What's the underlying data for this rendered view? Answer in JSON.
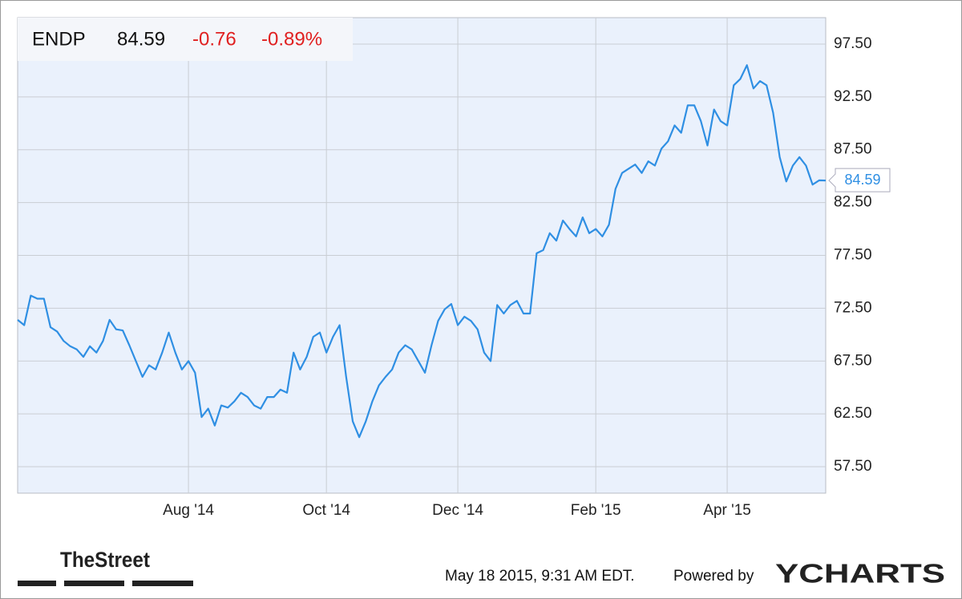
{
  "chart_data": {
    "type": "line",
    "ticker": "ENDP",
    "price": "84.59",
    "change": "-0.76",
    "change_percent": "-0.89%",
    "categories": [
      null,
      null,
      null,
      null,
      null,
      null,
      null,
      null,
      null,
      null,
      null,
      null,
      null,
      null,
      null,
      null,
      null,
      null,
      null,
      null,
      null,
      null,
      null,
      null,
      null,
      null,
      "Aug '14",
      null,
      null,
      null,
      null,
      null,
      null,
      null,
      null,
      null,
      null,
      null,
      null,
      null,
      null,
      null,
      null,
      null,
      null,
      null,
      null,
      "Oct '14",
      null,
      null,
      null,
      null,
      null,
      null,
      null,
      null,
      null,
      null,
      null,
      null,
      null,
      null,
      null,
      null,
      null,
      null,
      null,
      "Dec '14",
      null,
      null,
      null,
      null,
      null,
      null,
      null,
      null,
      null,
      null,
      null,
      null,
      null,
      null,
      null,
      null,
      null,
      null,
      null,
      null,
      "Feb '15",
      null,
      null,
      null,
      null,
      null,
      null,
      null,
      null,
      null,
      null,
      null,
      null,
      null,
      null,
      null,
      null,
      null,
      null,
      null,
      "Apr '15",
      null,
      null,
      null,
      null,
      null,
      null,
      null,
      null,
      null,
      null,
      null,
      null,
      null,
      null,
      null
    ],
    "series": [
      {
        "name": "ENDP",
        "color": "#2f8fe3",
        "values": [
          71.4,
          70.9,
          73.7,
          73.4,
          73.4,
          70.7,
          70.3,
          69.4,
          68.9,
          68.6,
          67.9,
          68.9,
          68.3,
          69.4,
          71.4,
          70.5,
          70.4,
          69.0,
          67.5,
          66.0,
          67.1,
          66.7,
          68.3,
          70.2,
          68.3,
          66.7,
          67.5,
          66.4,
          62.2,
          63.0,
          61.4,
          63.3,
          63.1,
          63.7,
          64.5,
          64.1,
          63.3,
          63.0,
          64.1,
          64.1,
          64.8,
          64.5,
          68.3,
          66.7,
          67.9,
          69.8,
          70.2,
          68.3,
          69.8,
          70.9,
          66.0,
          61.8,
          60.3,
          61.8,
          63.7,
          65.2,
          66.0,
          66.7,
          68.3,
          69.0,
          68.6,
          67.5,
          66.4,
          69.0,
          71.3,
          72.4,
          72.9,
          70.9,
          71.7,
          71.3,
          70.5,
          68.3,
          67.5,
          72.8,
          72.0,
          72.8,
          73.2,
          72.0,
          72.0,
          77.7,
          78.0,
          79.6,
          78.9,
          80.8,
          80.0,
          79.3,
          81.1,
          79.6,
          80.0,
          79.3,
          80.4,
          83.8,
          85.3,
          85.7,
          86.1,
          85.3,
          86.4,
          86.0,
          87.6,
          88.3,
          89.8,
          89.1,
          91.7,
          91.7,
          90.2,
          87.9,
          91.3,
          90.2,
          89.8,
          93.6,
          94.2,
          95.5,
          93.3,
          94.0,
          93.6,
          91.0,
          86.8,
          84.5,
          86.0,
          86.8,
          86.0,
          84.2,
          84.6,
          84.59
        ]
      }
    ],
    "ylim": [
      55,
      100
    ],
    "yticks": [
      {
        "value": 57.5,
        "label": "57.50"
      },
      {
        "value": 62.5,
        "label": "62.50"
      },
      {
        "value": 67.5,
        "label": "67.50"
      },
      {
        "value": 72.5,
        "label": "72.50"
      },
      {
        "value": 77.5,
        "label": "77.50"
      },
      {
        "value": 82.5,
        "label": "82.50"
      },
      {
        "value": 87.5,
        "label": "87.50"
      },
      {
        "value": 92.5,
        "label": "92.50"
      },
      {
        "value": 97.5,
        "label": "97.50"
      }
    ],
    "grid": true,
    "background": "#eaf1fc"
  },
  "footer": {
    "brand": "TheStreet",
    "timestamp": "May 18 2015, 9:31 AM EDT.",
    "powered_by": "Powered by",
    "provider": "YCHARTS"
  }
}
